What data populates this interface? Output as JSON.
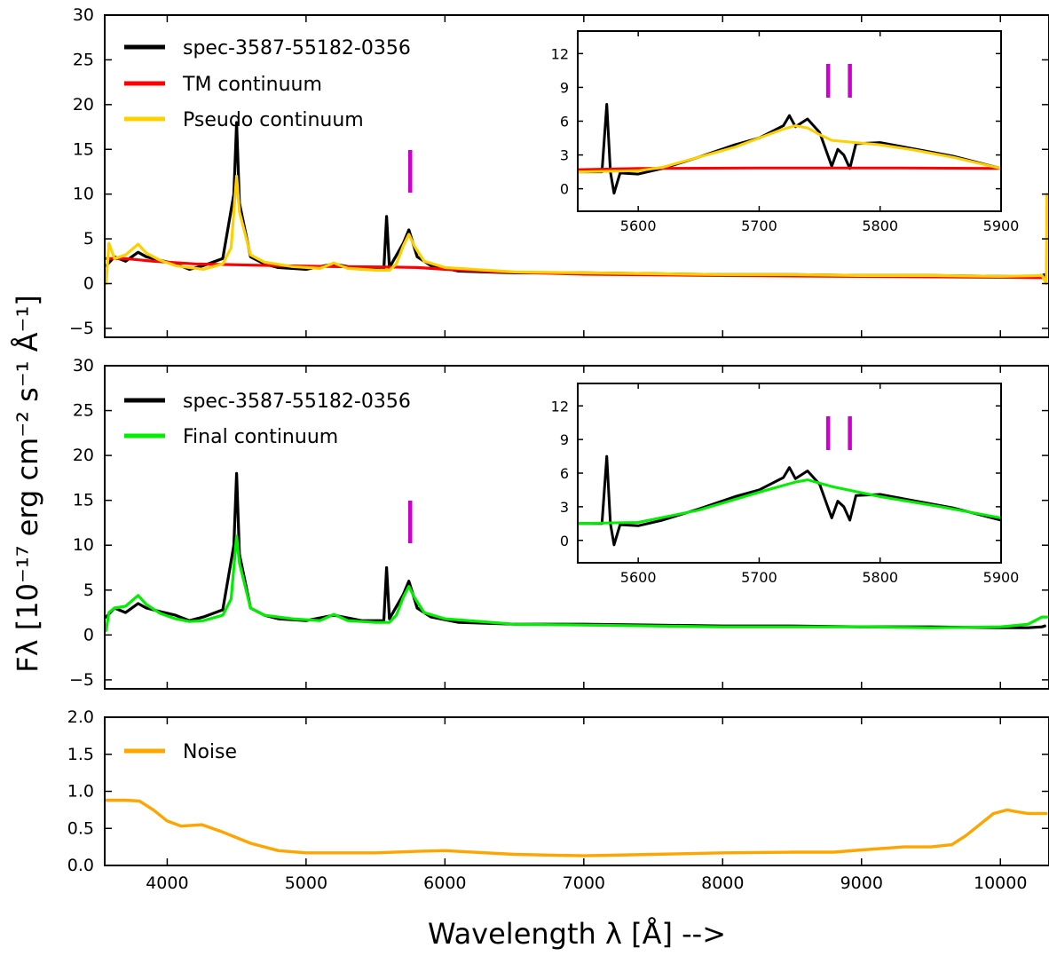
{
  "figure": {
    "ylabel": "Fλ [10⁻¹⁷ erg cm⁻² s⁻¹ Å⁻¹]",
    "xlabel": "Wavelength λ [Å] -->"
  },
  "colors": {
    "spectrum": "#000000",
    "tm_continuum": "#ff0000",
    "pseudo_continuum": "#ffd000",
    "final_continuum": "#00ee00",
    "noise": "#ffa500",
    "line_marker": "#cc00cc"
  },
  "chart_data": [
    {
      "type": "line",
      "xlim": [
        3550,
        10350
      ],
      "ylim": [
        -6,
        30
      ],
      "x_ticks": [
        4000,
        5000,
        6000,
        7000,
        8000,
        9000,
        10000
      ],
      "y_ticks": [
        -5,
        0,
        5,
        10,
        15,
        20,
        25,
        30
      ],
      "legend": "top-left",
      "series": [
        {
          "name": "spec-3587-55182-0356",
          "color": "#000000",
          "x": [
            3560,
            3620,
            3700,
            3790,
            3850,
            3950,
            4060,
            4160,
            4260,
            4400,
            4480,
            4500,
            4520,
            4600,
            4700,
            4800,
            5000,
            5200,
            5400,
            5560,
            5580,
            5600,
            5700,
            5740,
            5800,
            5900,
            6100,
            6500,
            7000,
            7500,
            8000,
            8500,
            9000,
            9500,
            10000,
            10200,
            10300,
            10320
          ],
          "y": [
            2,
            3,
            2.5,
            3.5,
            3,
            2.6,
            2.2,
            1.6,
            2,
            2.8,
            10,
            18,
            9,
            3,
            2.2,
            1.8,
            1.6,
            2.2,
            1.6,
            1.6,
            7.5,
            1.8,
            4.5,
            6,
            3,
            2,
            1.4,
            1.2,
            1.2,
            1.1,
            1,
            1,
            0.9,
            0.9,
            0.8,
            0.8,
            0.9,
            1
          ]
        },
        {
          "name": "TM continuum",
          "color": "#ff0000",
          "x": [
            3560,
            3700,
            3900,
            4200,
            4500,
            4800,
            5200,
            5600,
            5800,
            6000,
            6400,
            7000,
            8000,
            9000,
            10000,
            10330
          ],
          "y": [
            2.8,
            2.8,
            2.5,
            2.2,
            2.1,
            2.0,
            1.9,
            1.85,
            1.8,
            1.6,
            1.3,
            1.05,
            0.9,
            0.8,
            0.7,
            0.65
          ]
        },
        {
          "name": "Pseudo continuum",
          "color": "#ffd000",
          "x": [
            3560,
            3580,
            3620,
            3700,
            3790,
            3850,
            3950,
            4060,
            4160,
            4260,
            4400,
            4460,
            4500,
            4520,
            4600,
            4700,
            4900,
            5100,
            5200,
            5300,
            5500,
            5600,
            5650,
            5700,
            5740,
            5780,
            5850,
            6000,
            6500,
            7000,
            7500,
            8000,
            8500,
            9000,
            9500,
            10000,
            10300,
            10330,
            10335
          ],
          "y": [
            0,
            4.5,
            2.8,
            3.2,
            4.4,
            3.4,
            2.6,
            2,
            1.8,
            1.6,
            2.2,
            4,
            12,
            8,
            3.2,
            2.4,
            1.9,
            1.7,
            2.3,
            1.7,
            1.5,
            1.5,
            2.2,
            4.2,
            5.5,
            4.2,
            2.5,
            1.8,
            1.3,
            1.2,
            1.1,
            1,
            1,
            0.9,
            0.9,
            0.8,
            0.9,
            0,
            10
          ]
        }
      ],
      "markers": [
        {
          "x": 5750,
          "color": "#cc00cc"
        }
      ]
    },
    {
      "type": "line",
      "inset_of": "top panel",
      "xlim": [
        5550,
        5900
      ],
      "ylim": [
        -2,
        14
      ],
      "x_ticks": [
        5600,
        5700,
        5800,
        5900
      ],
      "y_ticks": [
        0,
        3,
        6,
        9,
        12
      ],
      "series": [
        {
          "name": "spec-3587-55182-0356",
          "color": "#000000",
          "x": [
            5550,
            5570,
            5574,
            5577,
            5580,
            5585,
            5600,
            5620,
            5650,
            5680,
            5700,
            5720,
            5725,
            5730,
            5740,
            5750,
            5755,
            5760,
            5765,
            5770,
            5775,
            5780,
            5800,
            5830,
            5860,
            5900
          ],
          "y": [
            1.5,
            1.5,
            7.5,
            1.5,
            -0.4,
            1.4,
            1.3,
            1.8,
            2.8,
            3.9,
            4.5,
            5.6,
            6.5,
            5.5,
            6.2,
            5,
            3.5,
            2,
            3.5,
            3,
            1.8,
            4,
            4.1,
            3.5,
            2.9,
            1.8
          ]
        },
        {
          "name": "TM continuum",
          "color": "#ff0000",
          "x": [
            5550,
            5600,
            5700,
            5800,
            5900
          ],
          "y": [
            1.7,
            1.8,
            1.85,
            1.85,
            1.8
          ]
        },
        {
          "name": "Pseudo continuum",
          "color": "#ffd000",
          "x": [
            5550,
            5600,
            5620,
            5650,
            5680,
            5700,
            5720,
            5730,
            5740,
            5750,
            5760,
            5780,
            5800,
            5830,
            5860,
            5900
          ],
          "y": [
            1.5,
            1.6,
            1.9,
            2.8,
            3.7,
            4.5,
            5.3,
            5.6,
            5.4,
            4.8,
            4.3,
            4.1,
            3.9,
            3.4,
            2.8,
            1.8
          ]
        }
      ],
      "markers": [
        {
          "x": 5757,
          "color": "#cc00cc"
        },
        {
          "x": 5775,
          "color": "#cc00cc"
        }
      ]
    },
    {
      "type": "line",
      "xlim": [
        3550,
        10350
      ],
      "ylim": [
        -6,
        30
      ],
      "x_ticks": [
        4000,
        5000,
        6000,
        7000,
        8000,
        9000,
        10000
      ],
      "y_ticks": [
        -5,
        0,
        5,
        10,
        15,
        20,
        25,
        30
      ],
      "legend": "top-left",
      "series": [
        {
          "name": "spec-3587-55182-0356",
          "color": "#000000",
          "x": [
            3560,
            3620,
            3700,
            3790,
            3850,
            3950,
            4060,
            4160,
            4260,
            4400,
            4480,
            4500,
            4520,
            4600,
            4700,
            4800,
            5000,
            5200,
            5400,
            5560,
            5580,
            5600,
            5700,
            5740,
            5800,
            5900,
            6100,
            6500,
            7000,
            7500,
            8000,
            8500,
            9000,
            9500,
            10000,
            10200,
            10300,
            10320
          ],
          "y": [
            2,
            3,
            2.5,
            3.5,
            3,
            2.6,
            2.2,
            1.6,
            2,
            2.8,
            10,
            18,
            9,
            3,
            2.2,
            1.8,
            1.6,
            2.2,
            1.6,
            1.6,
            7.5,
            1.8,
            4.5,
            6,
            3,
            2,
            1.4,
            1.2,
            1.2,
            1.1,
            1,
            1,
            0.9,
            0.9,
            0.8,
            0.8,
            0.9,
            1
          ]
        },
        {
          "name": "Final continuum",
          "color": "#00ee00",
          "x": [
            3560,
            3580,
            3620,
            3700,
            3790,
            3850,
            3950,
            4060,
            4160,
            4260,
            4400,
            4460,
            4500,
            4520,
            4600,
            4700,
            4900,
            5100,
            5200,
            5300,
            5500,
            5600,
            5650,
            5700,
            5740,
            5780,
            5850,
            6000,
            6500,
            7000,
            7500,
            8000,
            8500,
            9000,
            9500,
            10000,
            10200,
            10300,
            10335
          ],
          "y": [
            0.5,
            2.5,
            3,
            3.2,
            4.4,
            3.4,
            2.4,
            1.8,
            1.5,
            1.6,
            2.2,
            4,
            11,
            8,
            3,
            2.2,
            1.8,
            1.6,
            2.3,
            1.6,
            1.4,
            1.4,
            2.2,
            4.2,
            5.4,
            4.2,
            2.5,
            1.8,
            1.2,
            1.1,
            1,
            0.9,
            0.9,
            0.9,
            0.8,
            0.9,
            1.2,
            2,
            2
          ]
        }
      ],
      "markers": [
        {
          "x": 5750,
          "color": "#cc00cc"
        }
      ]
    },
    {
      "type": "line",
      "inset_of": "middle panel",
      "xlim": [
        5550,
        5900
      ],
      "ylim": [
        -2,
        14
      ],
      "x_ticks": [
        5600,
        5700,
        5800,
        5900
      ],
      "y_ticks": [
        0,
        3,
        6,
        9,
        12
      ],
      "series": [
        {
          "name": "spec-3587-55182-0356",
          "color": "#000000",
          "x": [
            5550,
            5570,
            5574,
            5577,
            5580,
            5585,
            5600,
            5620,
            5650,
            5680,
            5700,
            5720,
            5725,
            5730,
            5740,
            5750,
            5755,
            5760,
            5765,
            5770,
            5775,
            5780,
            5800,
            5830,
            5860,
            5900
          ],
          "y": [
            1.5,
            1.5,
            7.5,
            1.5,
            -0.4,
            1.4,
            1.3,
            1.8,
            2.8,
            3.9,
            4.5,
            5.6,
            6.5,
            5.5,
            6.2,
            5,
            3.5,
            2,
            3.5,
            3,
            1.8,
            4,
            4.1,
            3.5,
            2.9,
            1.8
          ]
        },
        {
          "name": "Final continuum",
          "color": "#00ee00",
          "x": [
            5550,
            5600,
            5650,
            5700,
            5730,
            5740,
            5760,
            5800,
            5850,
            5900
          ],
          "y": [
            1.5,
            1.6,
            2.7,
            4.3,
            5.2,
            5.4,
            4.8,
            3.9,
            3,
            2
          ]
        }
      ],
      "markers": [
        {
          "x": 5757,
          "color": "#cc00cc"
        },
        {
          "x": 5775,
          "color": "#cc00cc"
        }
      ]
    },
    {
      "type": "line",
      "xlim": [
        3550,
        10350
      ],
      "ylim": [
        0,
        2
      ],
      "x_ticks": [
        4000,
        5000,
        6000,
        7000,
        8000,
        9000,
        10000
      ],
      "y_ticks": [
        0.0,
        0.5,
        1.0,
        1.5,
        2.0
      ],
      "y_tick_labels": [
        "0.0",
        "0.5",
        "1.0",
        "1.5",
        "2.0"
      ],
      "legend": "top-left",
      "series": [
        {
          "name": "Noise",
          "color": "#ffa500",
          "x": [
            3560,
            3700,
            3800,
            3900,
            4000,
            4100,
            4250,
            4400,
            4600,
            4800,
            5000,
            5500,
            5800,
            6000,
            6500,
            7000,
            7500,
            8000,
            8500,
            8800,
            9000,
            9300,
            9500,
            9650,
            9750,
            9850,
            9950,
            10050,
            10100,
            10200,
            10330
          ],
          "y": [
            0.88,
            0.88,
            0.87,
            0.75,
            0.6,
            0.53,
            0.55,
            0.45,
            0.3,
            0.2,
            0.17,
            0.17,
            0.19,
            0.2,
            0.15,
            0.13,
            0.15,
            0.17,
            0.18,
            0.18,
            0.21,
            0.25,
            0.25,
            0.28,
            0.4,
            0.55,
            0.7,
            0.75,
            0.73,
            0.7,
            0.7
          ]
        }
      ]
    }
  ]
}
